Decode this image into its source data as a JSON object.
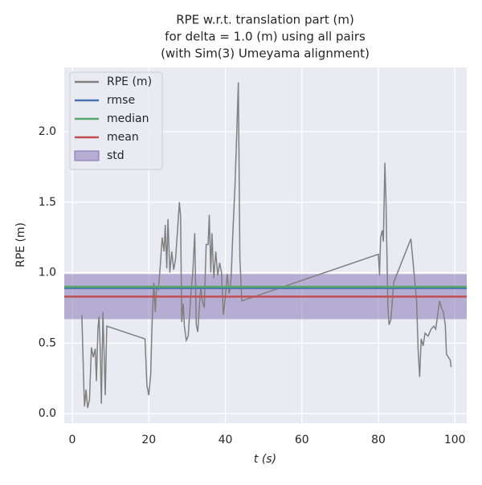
{
  "chart_data": {
    "type": "line",
    "title": [
      "RPE w.r.t. translation part (m)",
      "for delta = 1.0 (m) using all pairs",
      "(with Sim(3) Umeyama alignment)"
    ],
    "x_label": "t (s)",
    "y_label": "RPE (m)",
    "xlim": [
      -2.1,
      103.1
    ],
    "ylim": [
      -0.068,
      2.456
    ],
    "xticks": [
      0,
      20,
      40,
      60,
      80,
      100
    ],
    "yticks": [
      {
        "value": 0,
        "label": "0.0"
      },
      0.5,
      {
        "value": 1,
        "label": "1.0"
      },
      1.5,
      {
        "value": 2,
        "label": "2.0"
      }
    ],
    "grid": true,
    "legend": "upper left",
    "series": [
      {
        "name": "RPE (m)",
        "color": "#808080",
        "x": [
          2.5,
          3,
          3.2,
          3.6,
          4,
          4.5,
          5,
          5.5,
          6,
          6.3,
          6.7,
          7,
          7.3,
          7.6,
          8,
          8.3,
          8.6,
          9,
          19,
          19.5,
          20,
          20.5,
          20.8,
          21.3,
          21.7,
          22,
          22.5,
          23,
          23.5,
          24,
          24.3,
          24.7,
          25,
          25.5,
          26,
          26.5,
          27,
          27.5,
          28,
          28.3,
          28.6,
          29,
          29.3,
          29.8,
          30.3,
          31,
          31.5,
          32,
          32.4,
          32.8,
          33.2,
          33.6,
          34,
          34.5,
          35,
          35.5,
          35.8,
          36.2,
          36.5,
          37,
          37.5,
          38,
          38.5,
          39,
          39.5,
          40,
          40.5,
          41,
          41.5,
          42,
          42.5,
          43,
          43.4,
          43.8,
          44.3,
          80,
          80.3,
          80.6,
          81,
          81.3,
          81.7,
          82,
          82.5,
          82.8,
          83.3,
          84,
          88.5,
          90,
          90.4,
          90.8,
          91.2,
          91.7,
          92.2,
          93,
          93.8,
          94.5,
          95,
          95.5,
          96,
          96.5,
          97,
          97.5,
          97.8,
          98.8,
          99
        ],
        "values": [
          0.7,
          0.2,
          0.05,
          0.17,
          0.04,
          0.1,
          0.47,
          0.4,
          0.46,
          0.23,
          0.6,
          0.69,
          0.45,
          0.07,
          0.72,
          0.45,
          0.13,
          0.62,
          0.53,
          0.2,
          0.13,
          0.28,
          0.6,
          0.93,
          0.72,
          0.9,
          0.88,
          1.05,
          1.25,
          1.15,
          1.34,
          1.03,
          1.38,
          1.0,
          1.15,
          1.02,
          1.1,
          1.3,
          1.5,
          1.4,
          0.65,
          0.78,
          0.62,
          0.52,
          0.55,
          0.85,
          1.0,
          1.28,
          0.63,
          0.58,
          0.75,
          0.9,
          0.8,
          0.75,
          1.2,
          1.2,
          1.41,
          1.0,
          1.28,
          0.96,
          1.15,
          0.98,
          1.07,
          1.0,
          0.7,
          0.83,
          0.99,
          0.85,
          0.95,
          1.3,
          1.6,
          2.0,
          2.35,
          1.1,
          0.8,
          1.13,
          0.98,
          1.25,
          1.3,
          1.22,
          1.78,
          1.5,
          0.75,
          0.63,
          0.67,
          0.93,
          1.24,
          0.8,
          0.45,
          0.26,
          0.53,
          0.48,
          0.57,
          0.55,
          0.6,
          0.62,
          0.6,
          0.7,
          0.8,
          0.75,
          0.72,
          0.63,
          0.42,
          0.38,
          0.33
        ]
      }
    ],
    "statistics": [
      {
        "name": "rmse",
        "color": "#4c72b0",
        "value": 0.89
      },
      {
        "name": "median",
        "color": "#55a868",
        "value": 0.9
      },
      {
        "name": "mean",
        "color": "#c44e52",
        "value": 0.83
      },
      {
        "name": "std",
        "color": "#8172b2",
        "value": 0.16
      }
    ]
  }
}
